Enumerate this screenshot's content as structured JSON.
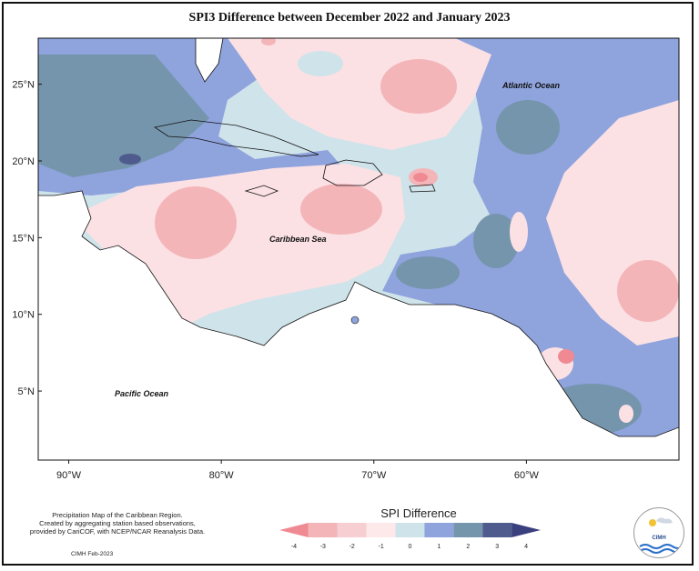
{
  "title": "SPI3 Difference between December 2022 and January 2023",
  "map": {
    "lat_ticks": [
      "25°N",
      "20°N",
      "15°N",
      "10°N",
      "5°N"
    ],
    "lon_ticks": [
      "90°W",
      "80°W",
      "70°W",
      "60°W"
    ],
    "labels": {
      "atlantic": "Atlantic Ocean",
      "caribbean": "Caribbean Sea",
      "pacific": "Pacific Ocean"
    },
    "extent": {
      "lon": [
        -92,
        -50
      ],
      "lat": [
        0.5,
        28
      ]
    }
  },
  "legend": {
    "title": "SPI Difference",
    "ticks": [
      "-4",
      "-3",
      "-2",
      "-1",
      "0",
      "1",
      "2",
      "3",
      "4"
    ],
    "colors": [
      "#f08a92",
      "#f4b5b9",
      "#f7cfd2",
      "#fde8ea",
      "#cfe3ea",
      "#8fa3dd",
      "#7595ad",
      "#4f5b8d",
      "#3a3f7e"
    ]
  },
  "credit": {
    "line1": "Precipitation Map of the Caribbean Region.",
    "line2": "Created by aggregating station based observations,",
    "line3": "provided by CariCOF, with NCEP/NCAR Reanalysis Data.",
    "date": "CIMH Feb-2023"
  },
  "logo": {
    "text": "CIMH"
  },
  "colors": {
    "strong_dry": "#f08a92",
    "dry": "#f4b5b9",
    "slight_dry": "#fbe1e4",
    "neutral": "#cfe3ea",
    "wet": "#8fa3dd",
    "very_wet": "#7595ad",
    "extreme_wet": "#4f5b8d"
  }
}
